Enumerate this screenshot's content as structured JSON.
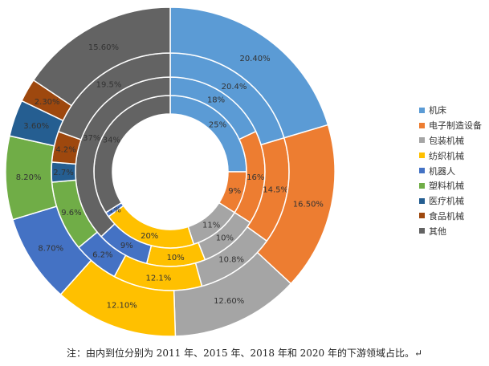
{
  "chart_data": {
    "type": "pie",
    "style": "multi-ring donut",
    "categories": [
      "机床",
      "电子制造设备",
      "包装机械",
      "纺织机械",
      "机器人",
      "塑料机械",
      "医疗机械",
      "食品机械",
      "其他"
    ],
    "colors": [
      "#5B9BD5",
      "#ED7D31",
      "#A5A5A5",
      "#FFC000",
      "#4472C4",
      "#70AD47",
      "#255E91",
      "#9E480E",
      "#636363"
    ],
    "series": [
      {
        "values": [
          25,
          9,
          11,
          20,
          1,
          0,
          0,
          0,
          34
        ],
        "labels": [
          "25%",
          "9%",
          "11%",
          "20%",
          "1%",
          "",
          "",
          "",
          "34%"
        ]
      },
      {
        "values": [
          18,
          16,
          10,
          10,
          9,
          0,
          0,
          0,
          37
        ],
        "labels": [
          "18%",
          "16%",
          "10%",
          "10%",
          "9%",
          "",
          "",
          "",
          "37%"
        ]
      },
      {
        "values": [
          20.4,
          14.5,
          10.8,
          12.1,
          6.2,
          9.6,
          2.7,
          4.2,
          19.5
        ],
        "labels": [
          "20.4%",
          "14.5%",
          "10.8%",
          "12.1%",
          "6.2%",
          "9.6%",
          "2.7%",
          "4.2%",
          "19.5%"
        ]
      },
      {
        "values": [
          20.4,
          16.5,
          12.6,
          12.1,
          8.7,
          8.2,
          3.6,
          2.3,
          15.6
        ],
        "labels": [
          "20.40%",
          "16.50%",
          "12.60%",
          "12.10%",
          "8.70%",
          "8.20%",
          "3.60%",
          "2.30%",
          "15.60%"
        ]
      }
    ],
    "legend_position": "right",
    "note": "注：由内到位分别为 2011 年、2015 年、2018 年和 2020 年的下游领域占比。↵"
  }
}
